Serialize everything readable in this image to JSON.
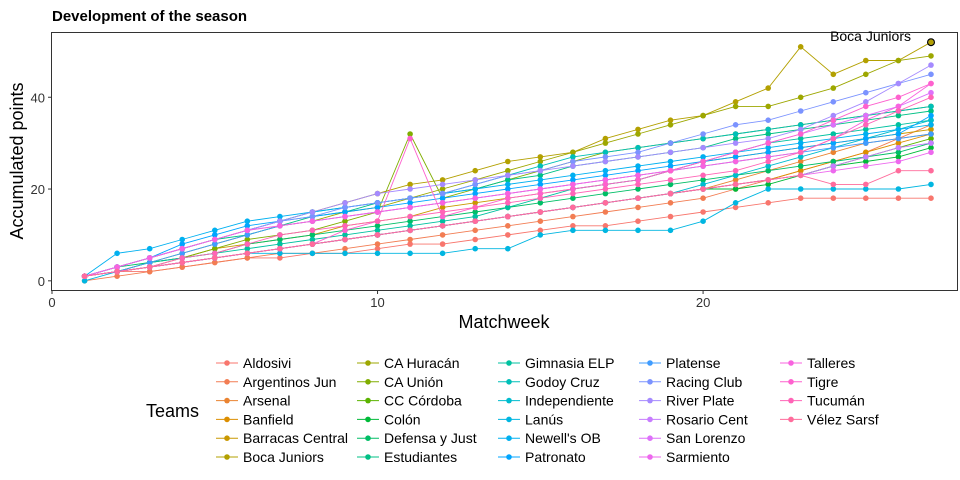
{
  "chart_data": {
    "type": "line",
    "title": "Development of the season",
    "xlabel": "Matchweek",
    "ylabel": "Accumulated points",
    "xlim": [
      0,
      27.8
    ],
    "ylim": [
      -2,
      54
    ],
    "x_ticks": [
      0,
      10,
      20
    ],
    "y_ticks": [
      0,
      20,
      40
    ],
    "grid": false,
    "legend_title": "Teams",
    "legend_position": "bottom",
    "annotation": {
      "text": "Boca Juniors",
      "x": 27,
      "y": 52
    },
    "series": [
      {
        "name": "Aldosivi",
        "color": "#F8766D",
        "values": [
          1,
          2,
          2,
          3,
          4,
          5,
          5,
          6,
          6,
          7,
          8,
          8,
          9,
          10,
          11,
          12,
          12,
          13,
          14,
          15,
          16,
          17,
          18,
          18,
          18,
          18,
          18
        ]
      },
      {
        "name": "Argentinos Jun",
        "color": "#F27D53",
        "values": [
          0,
          1,
          2,
          3,
          4,
          5,
          6,
          6,
          7,
          8,
          9,
          10,
          11,
          12,
          13,
          14,
          15,
          16,
          17,
          18,
          20,
          22,
          24,
          26,
          28,
          31,
          34
        ]
      },
      {
        "name": "Arsenal",
        "color": "#EA8331",
        "values": [
          1,
          2,
          3,
          4,
          5,
          6,
          7,
          8,
          9,
          10,
          11,
          12,
          13,
          14,
          15,
          16,
          17,
          18,
          19,
          20,
          22,
          24,
          26,
          28,
          30,
          31,
          32
        ]
      },
      {
        "name": "Banfield",
        "color": "#DC8E00",
        "values": [
          1,
          2,
          3,
          4,
          5,
          6,
          7,
          8,
          9,
          10,
          11,
          12,
          13,
          14,
          15,
          16,
          17,
          18,
          19,
          20,
          21,
          22,
          24,
          26,
          28,
          30,
          32
        ]
      },
      {
        "name": "Barracas Central",
        "color": "#C99800",
        "values": [
          1,
          2,
          4,
          5,
          7,
          8,
          9,
          10,
          12,
          13,
          14,
          16,
          17,
          18,
          19,
          20,
          21,
          22,
          24,
          26,
          27,
          28,
          29,
          30,
          31,
          32,
          33
        ]
      },
      {
        "name": "Boca Juniors",
        "color": "#B3A000",
        "values": [
          1,
          3,
          5,
          7,
          9,
          11,
          13,
          15,
          17,
          19,
          21,
          22,
          24,
          26,
          27,
          28,
          31,
          33,
          35,
          36,
          39,
          42,
          51,
          45,
          48,
          48,
          52
        ]
      },
      {
        "name": "CA Huracán",
        "color": "#9DA700",
        "values": [
          1,
          2,
          4,
          6,
          8,
          10,
          12,
          13,
          15,
          16,
          18,
          20,
          22,
          24,
          26,
          28,
          30,
          32,
          34,
          36,
          38,
          38,
          40,
          42,
          45,
          48,
          49
        ]
      },
      {
        "name": "CA Unión",
        "color": "#80AD00",
        "values": [
          1,
          2,
          3,
          5,
          7,
          9,
          10,
          11,
          13,
          15,
          32,
          18,
          20,
          22,
          24,
          26,
          28,
          29,
          30,
          31,
          32,
          33,
          34,
          35,
          36,
          37,
          38
        ]
      },
      {
        "name": "CC Córdoba",
        "color": "#5BB300",
        "values": [
          1,
          2,
          3,
          4,
          5,
          6,
          7,
          8,
          9,
          10,
          11,
          12,
          13,
          14,
          15,
          16,
          17,
          18,
          19,
          20,
          21,
          22,
          23,
          25,
          27,
          29,
          31
        ]
      },
      {
        "name": "Colón",
        "color": "#00BA38",
        "values": [
          1,
          2,
          3,
          4,
          5,
          6,
          7,
          8,
          9,
          10,
          11,
          12,
          13,
          14,
          15,
          16,
          17,
          18,
          19,
          20,
          20,
          21,
          23,
          25,
          26,
          27,
          29
        ]
      },
      {
        "name": "Defensa y Just",
        "color": "#00BE66",
        "values": [
          1,
          3,
          4,
          5,
          6,
          8,
          9,
          10,
          11,
          12,
          13,
          14,
          15,
          16,
          17,
          18,
          19,
          20,
          21,
          22,
          23,
          24,
          25,
          26,
          27,
          28,
          30
        ]
      },
      {
        "name": "Estudiantes",
        "color": "#00C085",
        "values": [
          1,
          3,
          5,
          7,
          9,
          10,
          12,
          14,
          15,
          17,
          18,
          19,
          20,
          22,
          23,
          25,
          26,
          27,
          28,
          29,
          31,
          32,
          33,
          34,
          35,
          36,
          37
        ]
      },
      {
        "name": "Gimnasia ELP",
        "color": "#00C1A0",
        "values": [
          1,
          2,
          4,
          5,
          6,
          7,
          8,
          9,
          10,
          11,
          12,
          13,
          14,
          16,
          18,
          20,
          21,
          22,
          24,
          26,
          28,
          30,
          31,
          32,
          33,
          34,
          35
        ]
      },
      {
        "name": "Godoy Cruz",
        "color": "#00BFB8",
        "values": [
          1,
          3,
          5,
          7,
          9,
          11,
          13,
          15,
          16,
          17,
          18,
          19,
          21,
          23,
          25,
          27,
          28,
          29,
          30,
          31,
          32,
          33,
          34,
          35,
          36,
          37,
          38
        ]
      },
      {
        "name": "Independiente",
        "color": "#00BCCE",
        "values": [
          1,
          2,
          3,
          4,
          5,
          6,
          7,
          8,
          9,
          10,
          11,
          12,
          13,
          14,
          15,
          16,
          17,
          18,
          19,
          21,
          23,
          25,
          27,
          29,
          31,
          33,
          35
        ]
      },
      {
        "name": "Lanús",
        "color": "#00B6E1",
        "values": [
          0,
          2,
          3,
          4,
          5,
          6,
          6,
          6,
          6,
          6,
          6,
          6,
          7,
          7,
          10,
          11,
          11,
          11,
          11,
          13,
          17,
          20,
          20,
          20,
          20,
          20,
          21
        ]
      },
      {
        "name": "Newell's OB",
        "color": "#00B0F0",
        "values": [
          1,
          6,
          7,
          9,
          11,
          13,
          14,
          15,
          16,
          17,
          18,
          19,
          20,
          21,
          22,
          23,
          24,
          25,
          26,
          27,
          28,
          29,
          30,
          31,
          32,
          33,
          34
        ]
      },
      {
        "name": "Patronato",
        "color": "#00A5FF",
        "values": [
          1,
          3,
          5,
          8,
          10,
          12,
          13,
          14,
          15,
          16,
          17,
          18,
          19,
          20,
          21,
          22,
          23,
          24,
          25,
          26,
          27,
          28,
          29,
          30,
          31,
          32,
          36
        ]
      },
      {
        "name": "Platense",
        "color": "#3F9CFF",
        "values": [
          1,
          2,
          4,
          6,
          8,
          10,
          12,
          13,
          14,
          15,
          16,
          17,
          18,
          19,
          20,
          21,
          22,
          23,
          24,
          25,
          26,
          27,
          28,
          29,
          30,
          31,
          32
        ]
      },
      {
        "name": "Racing Club",
        "color": "#7B93FF",
        "values": [
          1,
          3,
          5,
          7,
          9,
          11,
          13,
          14,
          16,
          17,
          18,
          19,
          21,
          23,
          24,
          26,
          27,
          28,
          30,
          32,
          34,
          35,
          37,
          39,
          41,
          43,
          45
        ]
      },
      {
        "name": "River Plate",
        "color": "#A58AFF",
        "values": [
          1,
          3,
          5,
          7,
          9,
          11,
          13,
          15,
          17,
          19,
          20,
          21,
          22,
          23,
          24,
          25,
          26,
          27,
          28,
          29,
          30,
          31,
          33,
          36,
          39,
          43,
          47
        ]
      },
      {
        "name": "Rosario Cent",
        "color": "#C77CFF",
        "values": [
          1,
          2,
          3,
          4,
          5,
          6,
          7,
          8,
          9,
          10,
          11,
          12,
          13,
          14,
          15,
          16,
          17,
          18,
          19,
          20,
          21,
          22,
          23,
          25,
          27,
          29,
          30
        ]
      },
      {
        "name": "San Lorenzo",
        "color": "#DD71FA",
        "values": [
          1,
          3,
          5,
          7,
          9,
          11,
          12,
          13,
          14,
          15,
          16,
          17,
          18,
          19,
          20,
          21,
          22,
          23,
          24,
          26,
          28,
          30,
          32,
          34,
          36,
          38,
          41
        ]
      },
      {
        "name": "Sarmiento",
        "color": "#ED68EE",
        "values": [
          1,
          2,
          3,
          4,
          5,
          6,
          7,
          8,
          9,
          10,
          11,
          12,
          13,
          14,
          15,
          16,
          17,
          18,
          19,
          20,
          21,
          22,
          23,
          24,
          25,
          26,
          28
        ]
      },
      {
        "name": "Talleres",
        "color": "#F863DF",
        "values": [
          1,
          3,
          5,
          7,
          9,
          11,
          12,
          13,
          14,
          15,
          16,
          17,
          18,
          19,
          20,
          21,
          22,
          23,
          24,
          25,
          26,
          27,
          28,
          31,
          35,
          38,
          43
        ]
      },
      {
        "name": "Tigre",
        "color": "#FE61CE",
        "values": [
          1,
          2,
          3,
          4,
          5,
          6,
          7,
          8,
          11,
          13,
          31,
          14,
          16,
          18,
          19,
          20,
          21,
          22,
          24,
          26,
          28,
          30,
          32,
          35,
          38,
          40,
          43
        ]
      },
      {
        "name": "Tucumán",
        "color": "#FF64B7",
        "values": [
          1,
          2,
          3,
          5,
          6,
          8,
          10,
          11,
          12,
          13,
          14,
          15,
          16,
          17,
          18,
          19,
          20,
          21,
          22,
          23,
          24,
          26,
          28,
          31,
          34,
          37,
          40
        ]
      },
      {
        "name": "Vélez Sarsf",
        "color": "#FF6C9C",
        "values": [
          1,
          2,
          3,
          4,
          5,
          6,
          7,
          8,
          9,
          10,
          11,
          12,
          13,
          14,
          15,
          16,
          17,
          18,
          19,
          20,
          21,
          22,
          23,
          21,
          21,
          24,
          24
        ]
      }
    ]
  }
}
